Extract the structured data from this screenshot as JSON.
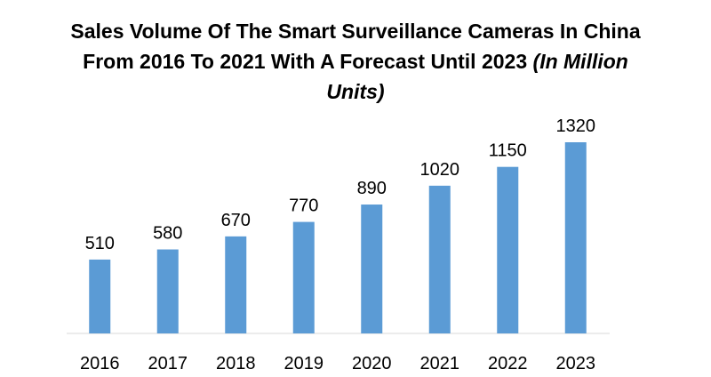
{
  "chart_data": {
    "type": "bar",
    "title": "Sales Volume Of The Smart Surveillance Cameras In China From 2016 To 2021 With A Forecast Until 2023",
    "unit_note": "(In Million Units)",
    "categories": [
      "2016",
      "2017",
      "2018",
      "2019",
      "2020",
      "2021",
      "2022",
      "2023"
    ],
    "values": [
      510,
      580,
      670,
      770,
      890,
      1020,
      1150,
      1320
    ],
    "color": "#5b9bd5"
  }
}
